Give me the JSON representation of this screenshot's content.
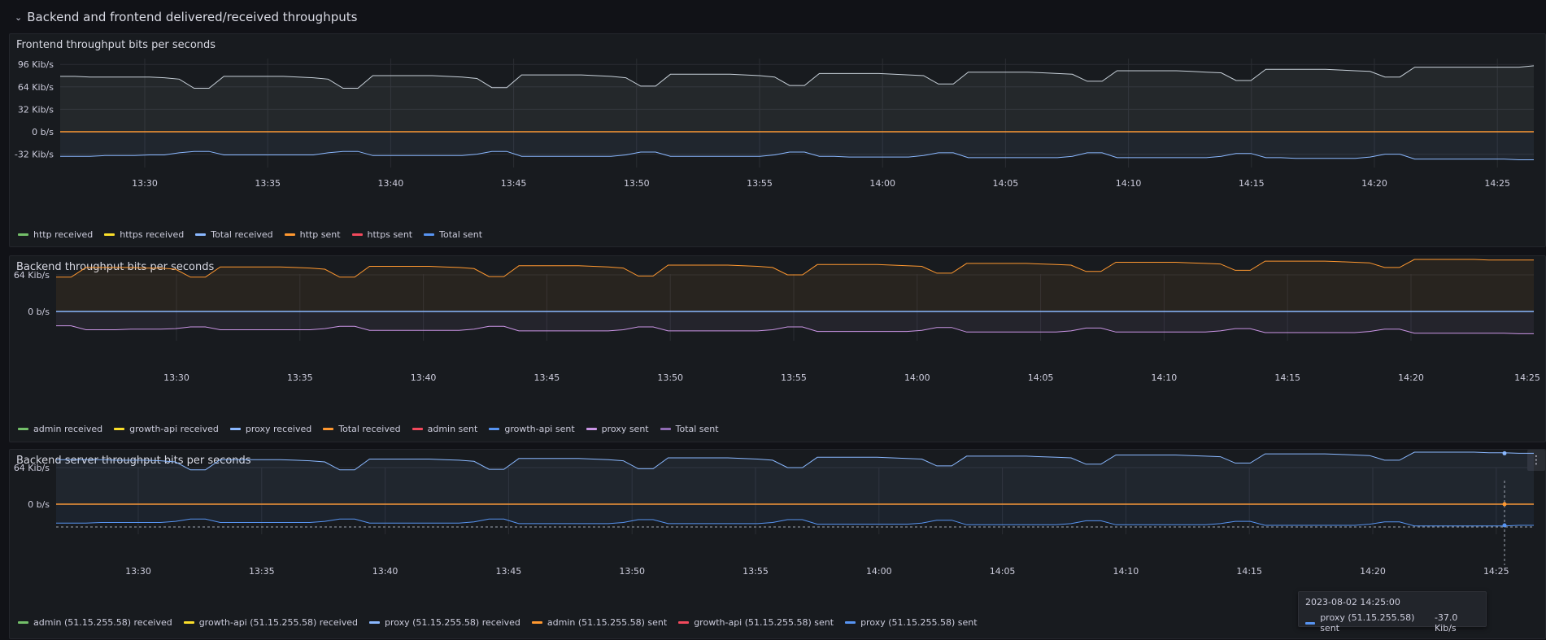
{
  "row": {
    "title": "Backend and frontend delivered/received throughputs",
    "chevron_icon": "chevron-down-icon"
  },
  "colors": {
    "green": "#73bf69",
    "yellow": "#fade2a",
    "lightblue": "#8ab8ff",
    "orange": "#ff9830",
    "red": "#f2495c",
    "blue": "#5794f2",
    "purple": "#ca95e5",
    "darkpurple": "#8f6bb3",
    "grey": "#c7d0d9"
  },
  "panels": [
    {
      "title": "Frontend throughput bits per seconds",
      "legend": [
        {
          "label": "http received",
          "color": "#73bf69"
        },
        {
          "label": "https received",
          "color": "#fade2a"
        },
        {
          "label": "Total received",
          "color": "#8ab8ff"
        },
        {
          "label": "http sent",
          "color": "#ff9830"
        },
        {
          "label": "https sent",
          "color": "#f2495c"
        },
        {
          "label": "Total sent",
          "color": "#5794f2"
        }
      ],
      "chart_data": {
        "type": "line",
        "x_ticks": [
          "13:30",
          "13:35",
          "13:40",
          "13:45",
          "13:50",
          "13:55",
          "14:00",
          "14:05",
          "14:10",
          "14:15",
          "14:20",
          "14:25"
        ],
        "y_ticks": [
          "96 Kib/s",
          "64 Kib/s",
          "32 Kib/s",
          "0 b/s",
          "-32 Kib/s"
        ],
        "y_tick_values": [
          96,
          64,
          32,
          0,
          -32
        ],
        "ylim": [
          -40,
          108
        ],
        "unit": "Kib/s",
        "series": [
          {
            "name": "Total received",
            "color": "#c7d0d9",
            "values": [
              79,
              79,
              78,
              78,
              78,
              78,
              78,
              77,
              75,
              62,
              62,
              79,
              79,
              79,
              79,
              79,
              78,
              77,
              75,
              62,
              62,
              80,
              80,
              80,
              80,
              80,
              79,
              78,
              76,
              63,
              63,
              81,
              81,
              81,
              81,
              81,
              80,
              79,
              77,
              65,
              65,
              82,
              82,
              82,
              82,
              82,
              81,
              80,
              78,
              66,
              66,
              83,
              83,
              83,
              83,
              83,
              82,
              81,
              80,
              68,
              68,
              85,
              85,
              85,
              85,
              85,
              84,
              83,
              82,
              72,
              72,
              87,
              87,
              87,
              87,
              87,
              86,
              85,
              84,
              73,
              73,
              89,
              89,
              89,
              89,
              89,
              88,
              87,
              86,
              78,
              78,
              92,
              92,
              92,
              92,
              92,
              92,
              92,
              92,
              94
            ]
          },
          {
            "name": "http sent",
            "color": "#ff9830",
            "values": "flat-zero"
          },
          {
            "name": "Total sent",
            "color": "#8ab8ff",
            "values": [
              -35,
              -35,
              -35,
              -34,
              -34,
              -34,
              -33,
              -33,
              -30,
              -28,
              -28,
              -33,
              -33,
              -33,
              -33,
              -33,
              -33,
              -33,
              -30,
              -28,
              -28,
              -34,
              -34,
              -34,
              -34,
              -34,
              -34,
              -34,
              -32,
              -28,
              -28,
              -35,
              -35,
              -35,
              -35,
              -35,
              -35,
              -35,
              -33,
              -29,
              -29,
              -35,
              -35,
              -35,
              -35,
              -35,
              -35,
              -35,
              -33,
              -29,
              -29,
              -35,
              -35,
              -36,
              -36,
              -36,
              -36,
              -36,
              -34,
              -30,
              -30,
              -37,
              -37,
              -37,
              -37,
              -37,
              -37,
              -37,
              -35,
              -30,
              -30,
              -37,
              -37,
              -37,
              -37,
              -37,
              -37,
              -37,
              -35,
              -31,
              -31,
              -37,
              -37,
              -38,
              -38,
              -38,
              -38,
              -38,
              -36,
              -32,
              -32,
              -39,
              -39,
              -39,
              -39,
              -39,
              -39,
              -39,
              -40,
              -40
            ]
          }
        ]
      }
    },
    {
      "title": "Backend throughput bits per seconds",
      "legend": [
        {
          "label": "admin received",
          "color": "#73bf69"
        },
        {
          "label": "growth-api received",
          "color": "#fade2a"
        },
        {
          "label": "proxy received",
          "color": "#8ab8ff"
        },
        {
          "label": "Total received",
          "color": "#ff9830"
        },
        {
          "label": "admin sent",
          "color": "#f2495c"
        },
        {
          "label": "growth-api sent",
          "color": "#5794f2"
        },
        {
          "label": "proxy sent",
          "color": "#ca95e5"
        },
        {
          "label": "Total sent",
          "color": "#8f6bb3"
        }
      ],
      "chart_data": {
        "type": "line",
        "x_ticks": [
          "13:30",
          "13:35",
          "13:40",
          "13:45",
          "13:50",
          "13:55",
          "14:00",
          "14:05",
          "14:10",
          "14:15",
          "14:20",
          "14:25"
        ],
        "y_ticks": [
          "64 Kib/s",
          "0 b/s"
        ],
        "y_tick_values": [
          64,
          0
        ],
        "ylim": [
          -42,
          110
        ],
        "unit": "Kib/s",
        "series": [
          {
            "name": "Total received",
            "color": "#ff9830",
            "values": [
              60,
              60,
              77,
              77,
              77,
              77,
              76,
              76,
              74,
              60,
              60,
              78,
              78,
              78,
              78,
              78,
              77,
              76,
              74,
              60,
              60,
              79,
              79,
              79,
              79,
              79,
              78,
              77,
              75,
              61,
              61,
              80,
              80,
              80,
              80,
              80,
              79,
              78,
              76,
              62,
              62,
              81,
              81,
              81,
              81,
              81,
              80,
              79,
              77,
              64,
              64,
              82,
              82,
              82,
              82,
              82,
              81,
              80,
              79,
              67,
              67,
              84,
              84,
              84,
              84,
              84,
              83,
              82,
              81,
              70,
              70,
              86,
              86,
              86,
              86,
              86,
              85,
              84,
              83,
              72,
              72,
              88,
              88,
              88,
              88,
              88,
              87,
              86,
              85,
              77,
              77,
              91,
              91,
              91,
              91,
              91,
              90,
              90,
              90,
              90
            ]
          },
          {
            "name": "Total sent",
            "color": "#ca95e5",
            "values": [
              -25,
              -25,
              -32,
              -32,
              -32,
              -31,
              -31,
              -31,
              -30,
              -27,
              -27,
              -32,
              -32,
              -32,
              -32,
              -32,
              -32,
              -32,
              -30,
              -26,
              -26,
              -33,
              -33,
              -33,
              -33,
              -33,
              -33,
              -33,
              -31,
              -26,
              -26,
              -34,
              -34,
              -34,
              -34,
              -34,
              -34,
              -34,
              -32,
              -27,
              -27,
              -34,
              -34,
              -34,
              -34,
              -34,
              -34,
              -34,
              -32,
              -27,
              -27,
              -35,
              -35,
              -35,
              -35,
              -35,
              -35,
              -35,
              -33,
              -28,
              -28,
              -36,
              -36,
              -36,
              -36,
              -36,
              -36,
              -36,
              -34,
              -29,
              -29,
              -36,
              -36,
              -36,
              -36,
              -36,
              -36,
              -36,
              -34,
              -30,
              -30,
              -37,
              -37,
              -37,
              -37,
              -37,
              -37,
              -37,
              -35,
              -31,
              -31,
              -38,
              -38,
              -38,
              -38,
              -38,
              -38,
              -38,
              -39,
              -39
            ]
          },
          {
            "name": "proxy received",
            "color": "#8ab8ff",
            "values": "flat-zero"
          }
        ]
      }
    },
    {
      "title": "Backend server throughput bits per seconds",
      "menu_icon": "kebab-menu-icon",
      "legend": [
        {
          "label": "admin (51.15.255.58) received",
          "color": "#73bf69"
        },
        {
          "label": "growth-api (51.15.255.58) received",
          "color": "#fade2a"
        },
        {
          "label": "proxy (51.15.255.58) received",
          "color": "#8ab8ff"
        },
        {
          "label": "admin (51.15.255.58) sent",
          "color": "#ff9830"
        },
        {
          "label": "growth-api (51.15.255.58) sent",
          "color": "#f2495c"
        },
        {
          "label": "proxy (51.15.255.58) sent",
          "color": "#5794f2"
        }
      ],
      "chart_data": {
        "type": "line",
        "x_ticks": [
          "13:30",
          "13:35",
          "13:40",
          "13:45",
          "13:50",
          "13:55",
          "14:00",
          "14:05",
          "14:10",
          "14:15",
          "14:20",
          "14:25"
        ],
        "y_ticks": [
          "64 Kib/s",
          "0 b/s"
        ],
        "y_tick_values": [
          64,
          0
        ],
        "ylim": [
          -42,
          110
        ],
        "unit": "Kib/s",
        "series": [
          {
            "name": "proxy (51.15.255.58) received",
            "color": "#8ab8ff",
            "values": [
              78,
              78,
              78,
              78,
              77,
              77,
              77,
              76,
              74,
              60,
              60,
              78,
              78,
              78,
              78,
              78,
              77,
              76,
              74,
              60,
              60,
              79,
              79,
              79,
              79,
              79,
              78,
              77,
              75,
              61,
              61,
              80,
              80,
              80,
              80,
              80,
              79,
              78,
              76,
              62,
              62,
              81,
              81,
              81,
              81,
              81,
              80,
              79,
              77,
              64,
              64,
              82,
              82,
              82,
              82,
              82,
              81,
              80,
              79,
              67,
              67,
              84,
              84,
              84,
              84,
              84,
              83,
              82,
              81,
              70,
              70,
              86,
              86,
              86,
              86,
              86,
              85,
              84,
              83,
              72,
              72,
              88,
              88,
              88,
              88,
              88,
              87,
              86,
              85,
              77,
              77,
              91,
              91,
              91,
              91,
              91,
              90,
              90,
              89,
              89
            ]
          },
          {
            "name": "admin (51.15.255.58) sent",
            "color": "#ff9830",
            "values": "flat-zero"
          },
          {
            "name": "proxy (51.15.255.58) sent",
            "color": "#5794f2",
            "values": [
              -33,
              -33,
              -33,
              -32,
              -32,
              -32,
              -32,
              -32,
              -30,
              -26,
              -26,
              -32,
              -32,
              -32,
              -32,
              -32,
              -32,
              -32,
              -30,
              -26,
              -26,
              -33,
              -33,
              -33,
              -33,
              -33,
              -33,
              -33,
              -31,
              -26,
              -26,
              -34,
              -34,
              -34,
              -34,
              -34,
              -34,
              -34,
              -32,
              -27,
              -27,
              -34,
              -34,
              -34,
              -34,
              -34,
              -34,
              -34,
              -32,
              -27,
              -27,
              -35,
              -35,
              -35,
              -35,
              -35,
              -35,
              -35,
              -33,
              -28,
              -28,
              -36,
              -36,
              -36,
              -36,
              -36,
              -36,
              -36,
              -34,
              -29,
              -29,
              -36,
              -36,
              -36,
              -36,
              -36,
              -36,
              -36,
              -34,
              -30,
              -30,
              -37,
              -37,
              -37,
              -37,
              -37,
              -37,
              -37,
              -35,
              -31,
              -31,
              -38,
              -38,
              -38,
              -38,
              -38,
              -38,
              -38,
              -37,
              -37
            ]
          }
        ]
      }
    }
  ],
  "tooltip": {
    "time": "2023-08-02 14:25:00",
    "series": "proxy (51.15.255.58) sent",
    "value": "-37.0 Kib/s",
    "color": "#5794f2"
  }
}
